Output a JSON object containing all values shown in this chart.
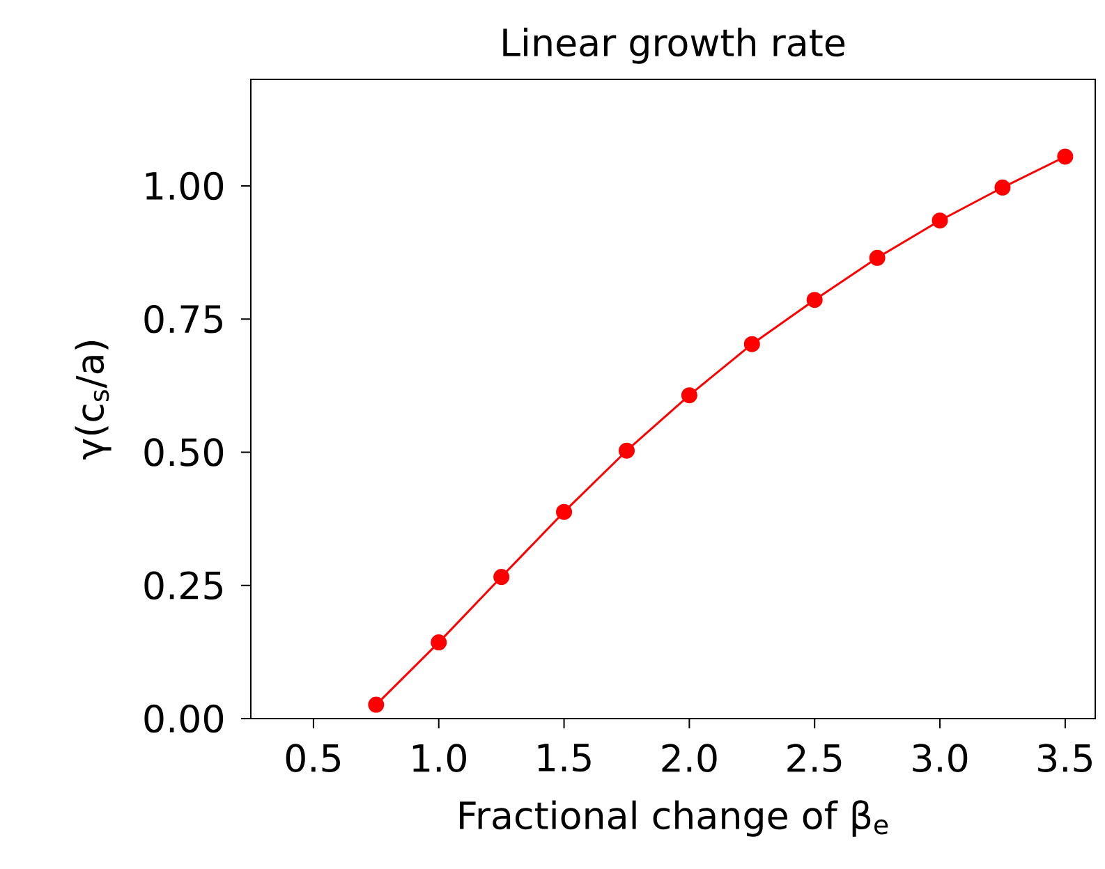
{
  "chart_data": {
    "type": "line",
    "title": "Linear growth rate",
    "xlabel": "Fractional change of β$_{e}$",
    "ylabel": "γ(c$_{s}$/a)",
    "x": [
      0.75,
      1.0,
      1.25,
      1.5,
      1.75,
      2.0,
      2.25,
      2.5,
      2.75,
      3.0,
      3.25,
      3.5
    ],
    "series": [
      {
        "color": "#ff0000",
        "values": [
          0.026,
          0.143,
          0.266,
          0.388,
          0.503,
          0.607,
          0.703,
          0.786,
          0.865,
          0.935,
          0.997,
          1.055
        ]
      }
    ],
    "xlim": [
      0.25,
      3.62
    ],
    "ylim": [
      0,
      1.2
    ],
    "xticks": [
      {
        "value": 0.5,
        "label": "0.5"
      },
      {
        "value": 1.0,
        "label": "1.0"
      },
      {
        "value": 1.5,
        "label": "1.5"
      },
      {
        "value": 2.0,
        "label": "2.0"
      },
      {
        "value": 2.5,
        "label": "2.5"
      },
      {
        "value": 3.0,
        "label": "3.0"
      },
      {
        "value": 3.5,
        "label": "3.5"
      }
    ],
    "yticks": [
      {
        "value": 0,
        "label": "0.00"
      },
      {
        "value": 0.25,
        "label": "0.25"
      },
      {
        "value": 0.5,
        "label": "0.50"
      },
      {
        "value": 0.75,
        "label": "0.75"
      },
      {
        "value": 1.0,
        "label": "1.00"
      }
    ],
    "marker": "circle",
    "line_style": "solid"
  }
}
